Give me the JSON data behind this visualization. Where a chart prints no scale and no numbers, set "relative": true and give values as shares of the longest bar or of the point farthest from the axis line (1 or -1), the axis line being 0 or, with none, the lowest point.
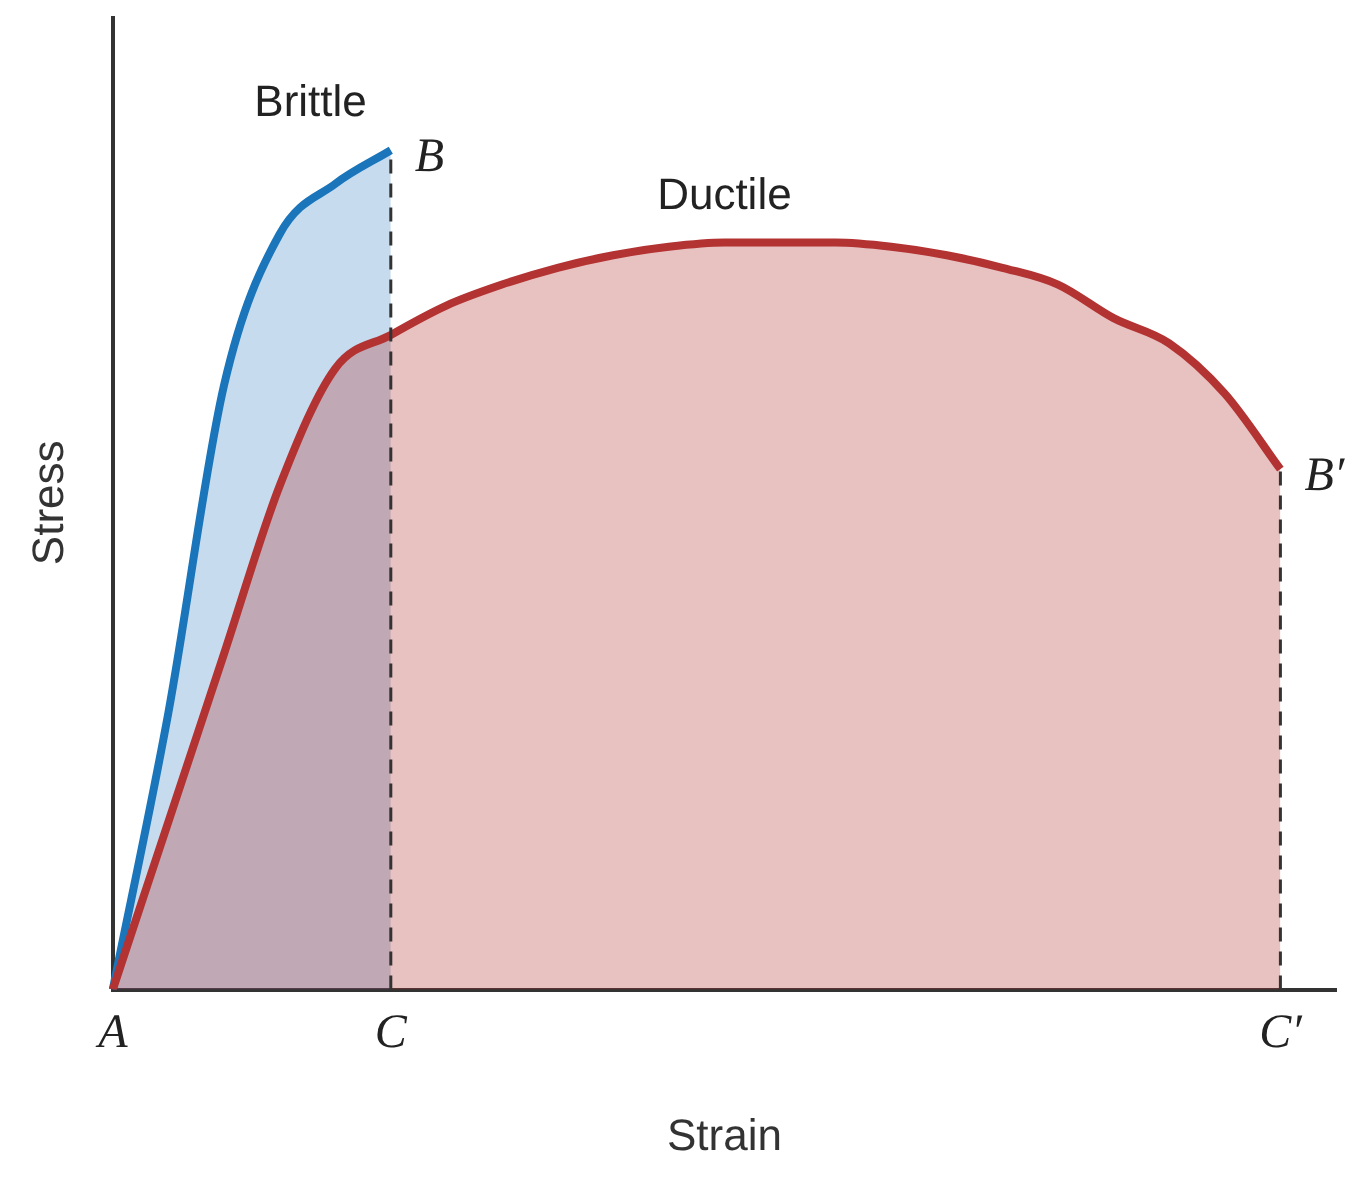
{
  "chart_data": {
    "type": "area",
    "relative": true,
    "xlabel": "Strain",
    "ylabel": "Stress",
    "categories": [
      "A",
      null,
      null,
      null,
      null,
      "C",
      null,
      null,
      null,
      null,
      null,
      null,
      null,
      null,
      null,
      null,
      null,
      null,
      null,
      null,
      null,
      "C′",
      null
    ],
    "series": [
      {
        "name": "Ductile",
        "color": "#b33232",
        "values": [
          0,
          0.2,
          0.4,
          0.6,
          0.74,
          0.78,
          0.815,
          0.84,
          0.86,
          0.875,
          0.885,
          0.89,
          0.89,
          0.89,
          0.885,
          0.875,
          0.86,
          0.84,
          0.8,
          0.77,
          0.71,
          0.62,
          null
        ]
      },
      {
        "name": "Brittle",
        "color": "#1a75bb",
        "values": [
          0,
          0.33,
          0.72,
          0.9,
          0.96,
          1,
          null,
          null,
          null,
          null,
          null,
          null,
          null,
          null,
          null,
          null,
          null,
          null,
          null,
          null,
          null,
          null,
          null
        ]
      }
    ],
    "ref_lines": [
      {
        "axis": "x",
        "value": "C",
        "line_style": "dashed",
        "color": "#333333"
      },
      {
        "axis": "x",
        "value": "C′",
        "line_style": "dashed",
        "color": "#333333"
      }
    ],
    "annotations": [
      {
        "text": "B",
        "x": "C",
        "y": 1
      },
      {
        "text": "B′",
        "x": "C′",
        "y": 0.62
      }
    ],
    "grid": false,
    "legend": false
  }
}
